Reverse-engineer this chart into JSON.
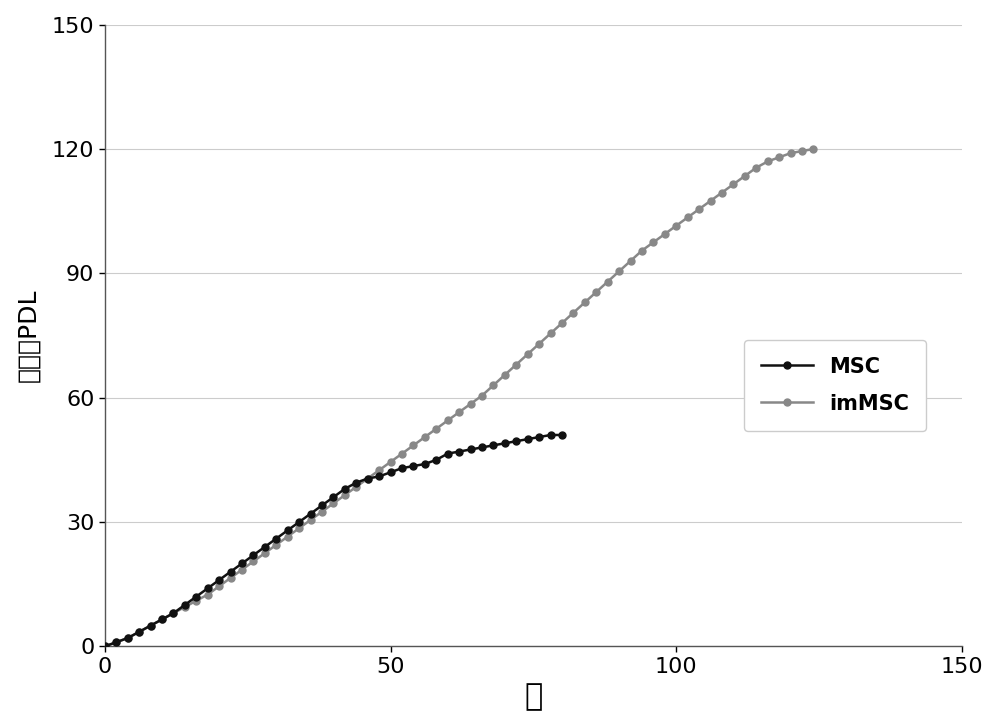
{
  "msc_x": [
    0,
    2,
    4,
    6,
    8,
    10,
    12,
    14,
    16,
    18,
    20,
    22,
    24,
    26,
    28,
    30,
    32,
    34,
    36,
    38,
    40,
    42,
    44,
    46,
    48,
    50,
    52,
    54,
    56,
    58,
    60,
    62,
    64,
    66,
    68,
    70,
    72,
    74,
    76,
    78,
    80
  ],
  "msc_y": [
    0,
    1,
    2,
    3.5,
    5,
    6.5,
    8,
    10,
    12,
    14,
    16,
    18,
    20,
    22,
    24,
    26,
    28,
    30,
    32,
    34,
    36,
    38,
    39.5,
    40.5,
    41,
    42,
    43,
    43.5,
    44,
    45,
    46.5,
    47,
    47.5,
    48,
    48.5,
    49,
    49.5,
    50,
    50.5,
    51,
    51
  ],
  "immsc_x": [
    0,
    2,
    4,
    6,
    8,
    10,
    12,
    14,
    16,
    18,
    20,
    22,
    24,
    26,
    28,
    30,
    32,
    34,
    36,
    38,
    40,
    42,
    44,
    46,
    48,
    50,
    52,
    54,
    56,
    58,
    60,
    62,
    64,
    66,
    68,
    70,
    72,
    74,
    76,
    78,
    80,
    82,
    84,
    86,
    88,
    90,
    92,
    94,
    96,
    98,
    100,
    102,
    104,
    106,
    108,
    110,
    112,
    114,
    116,
    118,
    120,
    122,
    124
  ],
  "immsc_y": [
    0,
    1.0,
    2.0,
    3.5,
    5.0,
    6.5,
    8.0,
    9.5,
    11.0,
    12.5,
    14.5,
    16.5,
    18.5,
    20.5,
    22.5,
    24.5,
    26.5,
    28.5,
    30.5,
    32.5,
    34.5,
    36.5,
    38.5,
    40.5,
    42.5,
    44.5,
    46.5,
    48.5,
    50.5,
    52.5,
    54.5,
    56.5,
    58.5,
    60.5,
    63.0,
    65.5,
    68.0,
    70.5,
    73.0,
    75.5,
    78.0,
    80.5,
    83.0,
    85.5,
    88.0,
    90.5,
    93.0,
    95.5,
    97.5,
    99.5,
    101.5,
    103.5,
    105.5,
    107.5,
    109.5,
    111.5,
    113.5,
    115.5,
    117.0,
    118.0,
    119.0,
    119.5,
    120.0
  ],
  "msc_color": "#111111",
  "immsc_color": "#888888",
  "xlabel": "天",
  "ylabel": "累积的PDL",
  "xlim": [
    0,
    150
  ],
  "ylim": [
    0,
    150
  ],
  "xticks": [
    0,
    50,
    100,
    150
  ],
  "yticks": [
    0,
    30,
    60,
    90,
    120,
    150
  ],
  "legend_msc": "MSC",
  "legend_immsc": "imMSC",
  "xlabel_fontsize": 22,
  "ylabel_fontsize": 18,
  "tick_fontsize": 16,
  "legend_fontsize": 15,
  "marker_size": 5,
  "line_width": 1.8,
  "fig_width": 10.0,
  "fig_height": 7.28
}
